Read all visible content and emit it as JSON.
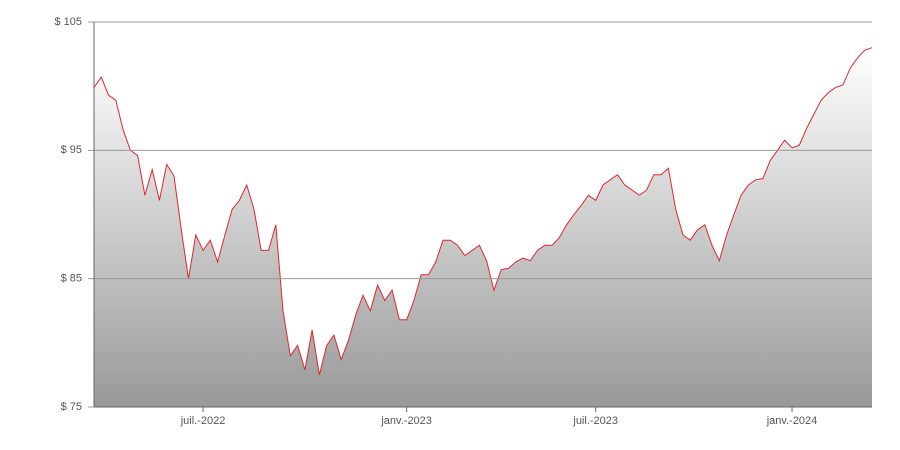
{
  "chart_data": {
    "type": "area",
    "categories": [
      null,
      null,
      null,
      null,
      null,
      null,
      null,
      null,
      null,
      null,
      null,
      null,
      null,
      null,
      null,
      "juil.-2022",
      null,
      null,
      null,
      null,
      null,
      null,
      null,
      null,
      null,
      null,
      null,
      null,
      null,
      null,
      null,
      null,
      null,
      null,
      null,
      null,
      null,
      null,
      null,
      null,
      null,
      null,
      null,
      "janv.-2023",
      null,
      null,
      null,
      null,
      null,
      null,
      null,
      null,
      null,
      null,
      null,
      null,
      null,
      null,
      null,
      null,
      null,
      null,
      null,
      null,
      null,
      null,
      null,
      null,
      null,
      "juil.-2023",
      null,
      null,
      null,
      null,
      null,
      null,
      null,
      null,
      null,
      null,
      null,
      null,
      null,
      null,
      null,
      null,
      null,
      null,
      null,
      null,
      null,
      null,
      null,
      null,
      null,
      null,
      "janv.-2024",
      null,
      null,
      null,
      null,
      null,
      null,
      null,
      null,
      null,
      null,
      null
    ],
    "values": [
      99.9,
      100.7,
      99.3,
      98.9,
      96.6,
      95,
      94.6,
      91.5,
      93.5,
      91.1,
      93.9,
      93,
      88.8,
      85,
      88.4,
      87.2,
      88,
      86.3,
      88.4,
      90.4,
      91.1,
      92.3,
      90.4,
      87.2,
      87.2,
      89.2,
      82.5,
      79,
      79.8,
      77.9,
      81,
      77.5,
      79.8,
      80.6,
      78.7,
      80.2,
      82.2,
      83.7,
      82.5,
      84.5,
      83.3,
      84.1,
      81.8,
      81.8,
      83.3,
      85.3,
      85.3,
      86.3,
      88,
      88,
      87.6,
      86.8,
      87.2,
      87.6,
      86.4,
      84.1,
      85.7,
      85.8,
      86.3,
      86.6,
      86.4,
      87.2,
      87.6,
      87.6,
      88.2,
      89.2,
      90,
      90.7,
      91.5,
      91.1,
      92.3,
      92.7,
      93.1,
      92.3,
      91.9,
      91.5,
      91.9,
      93.1,
      93.1,
      93.6,
      90.4,
      88.4,
      88,
      88.8,
      89.2,
      87.6,
      86.4,
      88.4,
      90,
      91.5,
      92.3,
      92.7,
      92.8,
      94.2,
      95,
      95.8,
      95.2,
      95.4,
      96.7,
      97.8,
      98.9,
      99.5,
      99.9,
      100.1,
      101.4,
      102.2,
      102.8,
      103
    ],
    "color": "#e0262b",
    "ylim": [
      75,
      105
    ],
    "yticks": [
      {
        "value": 75,
        "label": "$ 75"
      },
      {
        "value": 85,
        "label": "$ 85"
      },
      {
        "value": 95,
        "label": "$ 95"
      },
      {
        "value": 105,
        "label": "$ 105"
      }
    ],
    "grid": true
  }
}
